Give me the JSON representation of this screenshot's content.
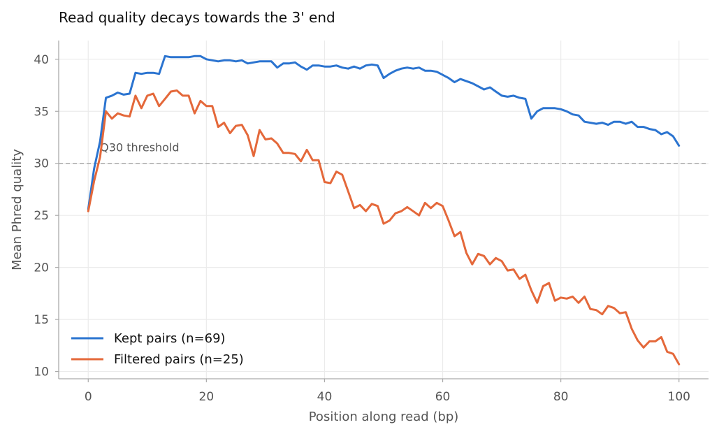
{
  "chart_data": {
    "type": "line",
    "title": "Read quality decays towards the 3' end",
    "xlabel": "Position along read (bp)",
    "ylabel": "Mean Phred quality",
    "xlim": [
      -5,
      105
    ],
    "ylim": [
      9.3,
      41.8
    ],
    "xticks": [
      0,
      20,
      40,
      60,
      80,
      100
    ],
    "yticks": [
      10,
      15,
      20,
      25,
      30,
      35,
      40
    ],
    "grid": true,
    "legend_position": "lower-left",
    "threshold": {
      "value": 30,
      "label": "Q30 threshold",
      "label_x": 2,
      "color": "#aaaaaa"
    },
    "x": [
      0,
      1,
      2,
      3,
      4,
      5,
      6,
      7,
      8,
      9,
      10,
      11,
      12,
      13,
      14,
      15,
      16,
      17,
      18,
      19,
      20,
      21,
      22,
      23,
      24,
      25,
      26,
      27,
      28,
      29,
      30,
      31,
      32,
      33,
      34,
      35,
      36,
      37,
      38,
      39,
      40,
      41,
      42,
      43,
      44,
      45,
      46,
      47,
      48,
      49,
      50,
      51,
      52,
      53,
      54,
      55,
      56,
      57,
      58,
      59,
      60,
      61,
      62,
      63,
      64,
      65,
      66,
      67,
      68,
      69,
      70,
      71,
      72,
      73,
      74,
      75,
      76,
      77,
      78,
      79,
      80,
      81,
      82,
      83,
      84,
      85,
      86,
      87,
      88,
      89,
      90,
      91,
      92,
      93,
      94,
      95,
      96,
      97,
      98,
      99,
      100
    ],
    "series": [
      {
        "name": "Kept pairs (n=69)",
        "color": "#2b74d0",
        "values": [
          25.6,
          29.5,
          32.1,
          36.3,
          36.5,
          36.8,
          36.6,
          36.7,
          38.7,
          38.6,
          38.7,
          38.7,
          38.6,
          40.3,
          40.2,
          40.2,
          40.2,
          40.2,
          40.3,
          40.3,
          40.0,
          39.9,
          39.8,
          39.9,
          39.9,
          39.8,
          39.9,
          39.6,
          39.7,
          39.8,
          39.8,
          39.8,
          39.2,
          39.6,
          39.6,
          39.7,
          39.3,
          39.0,
          39.4,
          39.4,
          39.3,
          39.3,
          39.4,
          39.2,
          39.1,
          39.3,
          39.1,
          39.4,
          39.5,
          39.4,
          38.2,
          38.6,
          38.9,
          39.1,
          39.2,
          39.1,
          39.2,
          38.9,
          38.9,
          38.8,
          38.5,
          38.2,
          37.8,
          38.1,
          37.9,
          37.7,
          37.4,
          37.1,
          37.3,
          36.9,
          36.5,
          36.4,
          36.5,
          36.3,
          36.2,
          34.3,
          35.0,
          35.3,
          35.3,
          35.3,
          35.2,
          35.0,
          34.7,
          34.6,
          34.0,
          33.9,
          33.8,
          33.9,
          33.7,
          34.0,
          34.0,
          33.8,
          34.0,
          33.5,
          33.5,
          33.3,
          33.2,
          32.8,
          33.0,
          32.6,
          31.7
        ]
      },
      {
        "name": "Filtered pairs (n=25)",
        "color": "#e4683a",
        "values": [
          25.4,
          28.3,
          30.6,
          35.0,
          34.3,
          34.8,
          34.6,
          34.5,
          36.5,
          35.3,
          36.5,
          36.7,
          35.5,
          36.2,
          36.9,
          37.0,
          36.5,
          36.5,
          34.8,
          36.0,
          35.5,
          35.5,
          33.5,
          33.9,
          32.9,
          33.6,
          33.7,
          32.7,
          30.7,
          33.2,
          32.3,
          32.4,
          31.9,
          31.0,
          31.0,
          30.9,
          30.2,
          31.3,
          30.3,
          30.3,
          28.2,
          28.1,
          29.2,
          28.9,
          27.3,
          25.7,
          26.0,
          25.4,
          26.1,
          25.9,
          24.2,
          24.5,
          25.2,
          25.4,
          25.8,
          25.4,
          25.0,
          26.2,
          25.7,
          26.2,
          25.9,
          24.5,
          23.0,
          23.4,
          21.4,
          20.3,
          21.3,
          21.1,
          20.3,
          20.9,
          20.6,
          19.7,
          19.8,
          18.9,
          19.3,
          17.8,
          16.6,
          18.2,
          18.5,
          16.8,
          17.1,
          17.0,
          17.2,
          16.6,
          17.2,
          16.0,
          15.9,
          15.5,
          16.3,
          16.1,
          15.6,
          15.7,
          14.1,
          13.0,
          12.3,
          12.9,
          12.9,
          13.3,
          11.9,
          11.7,
          10.7
        ]
      }
    ]
  }
}
